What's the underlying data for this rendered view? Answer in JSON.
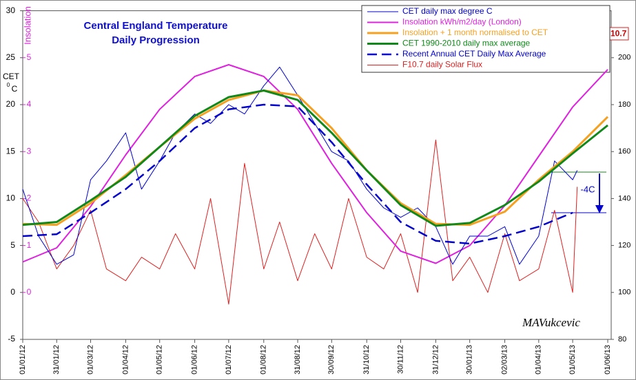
{
  "chart_data": {
    "type": "line",
    "title": "Central England Temperature",
    "subtitle": "Daily Progression",
    "y_label": "CET",
    "y_unit_sup": "0",
    "y_unit": "C",
    "y2_label": "F10.7",
    "y3_label": "Insolation",
    "annotation": "-4C",
    "signature": "MAVukcevic",
    "x": [
      "01/01/12",
      "31/01/12",
      "01/03/12",
      "01/04/12",
      "01/05/12",
      "01/06/12",
      "01/07/12",
      "01/08/12",
      "31/08/12",
      "30/09/12",
      "31/10/12",
      "30/11/12",
      "31/12/12",
      "30/01/13",
      "02/03/13",
      "01/04/13",
      "01/05/13",
      "01/06/13"
    ],
    "xlim": [
      "01/01/12",
      "01/06/13"
    ],
    "ylim": [
      -5,
      30
    ],
    "yticks": [
      -5,
      0,
      5,
      10,
      15,
      20,
      25,
      30
    ],
    "y2lim": [
      80,
      220
    ],
    "y2ticks": [
      80,
      100,
      120,
      140,
      160,
      180,
      200
    ],
    "y3lim": [
      -1,
      6
    ],
    "y3ticks": [
      0,
      1,
      2,
      3,
      4,
      5
    ],
    "grid": false,
    "legend": "top-right",
    "series": [
      {
        "name": "CET daily max degree C",
        "color": "#0000cc",
        "width": 1,
        "style": "solid",
        "axis": "y",
        "x": [
          "01/01/12",
          "15/01/12",
          "31/01/12",
          "15/02/12",
          "01/03/12",
          "15/03/12",
          "01/04/12",
          "15/04/12",
          "01/05/12",
          "15/05/12",
          "01/06/12",
          "15/06/12",
          "01/07/12",
          "15/07/12",
          "01/08/12",
          "15/08/12",
          "31/08/12",
          "15/09/12",
          "30/09/12",
          "15/10/12",
          "31/10/12",
          "15/11/12",
          "30/11/12",
          "15/12/12",
          "31/12/12",
          "15/01/13",
          "30/01/13",
          "15/02/13",
          "02/03/13",
          "15/03/13",
          "01/04/13",
          "15/04/13",
          "01/05/13",
          "05/05/13"
        ],
        "values": [
          11,
          6,
          3,
          4,
          12,
          14,
          17,
          11,
          14,
          17,
          19,
          18,
          20,
          19,
          22,
          24,
          21,
          18,
          15,
          14,
          11,
          9,
          8,
          9,
          7,
          3,
          6,
          6,
          7,
          3,
          6,
          14,
          12,
          13
        ]
      },
      {
        "name": "Insolation  kWh/m2/day  (London)",
        "color": "#e020e0",
        "width": 2,
        "style": "solid",
        "axis": "y3",
        "values": [
          0.65,
          0.95,
          1.83,
          2.93,
          3.9,
          4.6,
          4.85,
          4.6,
          3.9,
          2.75,
          1.7,
          0.88,
          0.62,
          1.0,
          1.85,
          2.9,
          3.95,
          4.75
        ]
      },
      {
        "name": "Insolation + 1 month  normalised to CET",
        "color": "#f5a020",
        "width": 3,
        "style": "solid",
        "axis": "y",
        "values": [
          7.3,
          7.2,
          9.5,
          12.5,
          15.5,
          18.5,
          20.5,
          21.5,
          21.0,
          17.5,
          13,
          9.5,
          7.3,
          7.2,
          8.6,
          12,
          15,
          18.7
        ]
      },
      {
        "name": "CET 1990-2010 daily max average",
        "color": "#10881a",
        "width": 3,
        "style": "solid",
        "axis": "y",
        "values": [
          7.2,
          7.5,
          9.8,
          12.3,
          15.5,
          18.8,
          20.8,
          21.5,
          20.5,
          17,
          13,
          9.3,
          7.1,
          7.4,
          9.3,
          11.8,
          14.8,
          17.8
        ]
      },
      {
        "name": "Recent  Annual CET Daily Max Average",
        "color": "#0000cc",
        "width": 2.5,
        "style": "dashed",
        "axis": "y",
        "values": [
          6,
          6.2,
          8.5,
          11,
          14,
          17.5,
          19.5,
          20.0,
          19.8,
          16,
          11.5,
          7.5,
          5.5,
          5.2,
          6.0,
          7.0,
          8.5,
          null
        ]
      },
      {
        "name": "F10.7 daily Solar Flux",
        "color": "#dd2020",
        "width": 1,
        "style": "solid",
        "axis": "y2",
        "x": [
          "01/01/12",
          "15/01/12",
          "31/01/12",
          "15/02/12",
          "01/03/12",
          "15/03/12",
          "01/04/12",
          "15/04/12",
          "01/05/12",
          "15/05/12",
          "01/06/12",
          "15/06/12",
          "01/07/12",
          "15/07/12",
          "01/08/12",
          "15/08/12",
          "31/08/12",
          "15/09/12",
          "30/09/12",
          "15/10/12",
          "31/10/12",
          "15/11/12",
          "30/11/12",
          "15/12/12",
          "31/12/12",
          "15/01/13",
          "30/01/13",
          "15/02/13",
          "02/03/13",
          "15/03/13",
          "01/04/13",
          "15/04/13",
          "01/05/13",
          "05/05/13"
        ],
        "values": [
          140,
          130,
          110,
          120,
          135,
          110,
          105,
          115,
          110,
          125,
          110,
          140,
          95,
          155,
          110,
          130,
          105,
          125,
          110,
          140,
          115,
          110,
          125,
          100,
          165,
          105,
          115,
          100,
          125,
          105,
          110,
          135,
          100,
          145
        ]
      }
    ]
  }
}
